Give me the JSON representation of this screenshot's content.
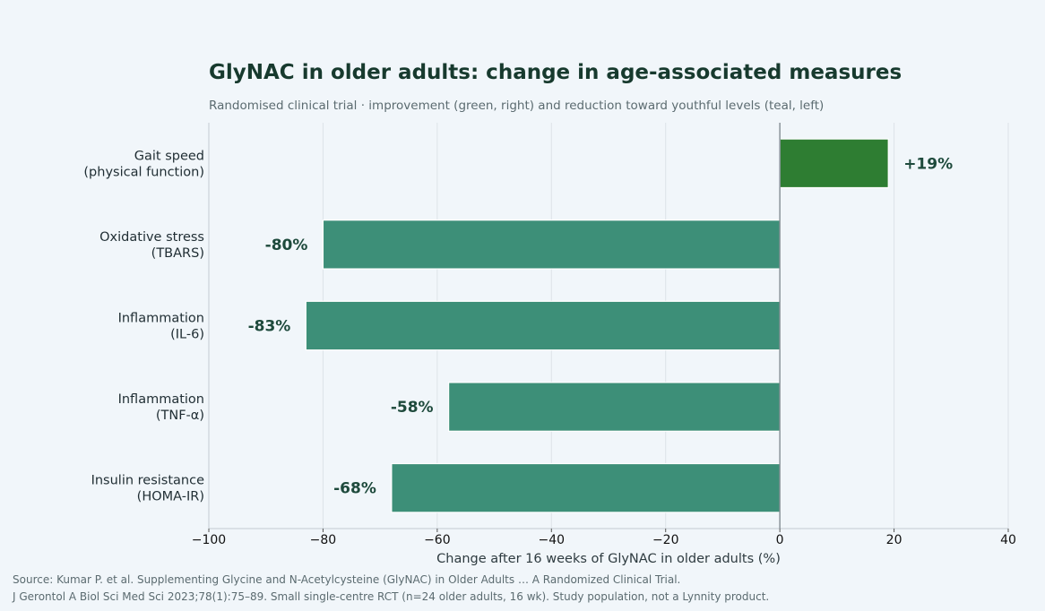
{
  "title": "GlyNAC in older adults: change in age-associated measures",
  "subtitle": "Randomised clinical trial · improvement (green, right) and reduction toward youthful levels (teal, left)",
  "source_line1": "Source: Kumar P. et al. Supplementing Glycine and N-Acetylcysteine (GlyNAC) in Older Adults … A Randomized Clinical Trial.",
  "source_line2": "J Gerontol A Biol Sci Med Sci 2023;78(1):75–89. Small single-centre RCT (n=24 older adults, 16 wk). Study population, not a Lynnity product.",
  "colors": {
    "positive": "#2e7d32",
    "negative": "#3d8f78",
    "label": "#1e4a3c",
    "background": "#f1f6fa"
  },
  "chart_data": {
    "type": "bar",
    "orientation": "horizontal",
    "categories": [
      [
        "Gait speed",
        "(physical function)"
      ],
      [
        "Oxidative stress",
        "(TBARS)"
      ],
      [
        "Inflammation",
        "(IL-6)"
      ],
      [
        "Inflammation",
        "(TNF-α)"
      ],
      [
        "Insulin resistance",
        "(HOMA-IR)"
      ]
    ],
    "values": [
      19,
      -80,
      -83,
      -58,
      -68
    ],
    "data_labels": [
      "+19%",
      "-80%",
      "-83%",
      "-58%",
      "-68%"
    ],
    "xlabel": "Change after 16 weeks of GlyNAC in older adults (%)",
    "xlim": [
      -100,
      40
    ],
    "xticks": [
      -100,
      -80,
      -60,
      -40,
      -20,
      0,
      20,
      40
    ],
    "xtick_labels": [
      "−100",
      "−80",
      "−60",
      "−40",
      "−20",
      "0",
      "20",
      "40"
    ],
    "grid": true,
    "legend": "none"
  }
}
